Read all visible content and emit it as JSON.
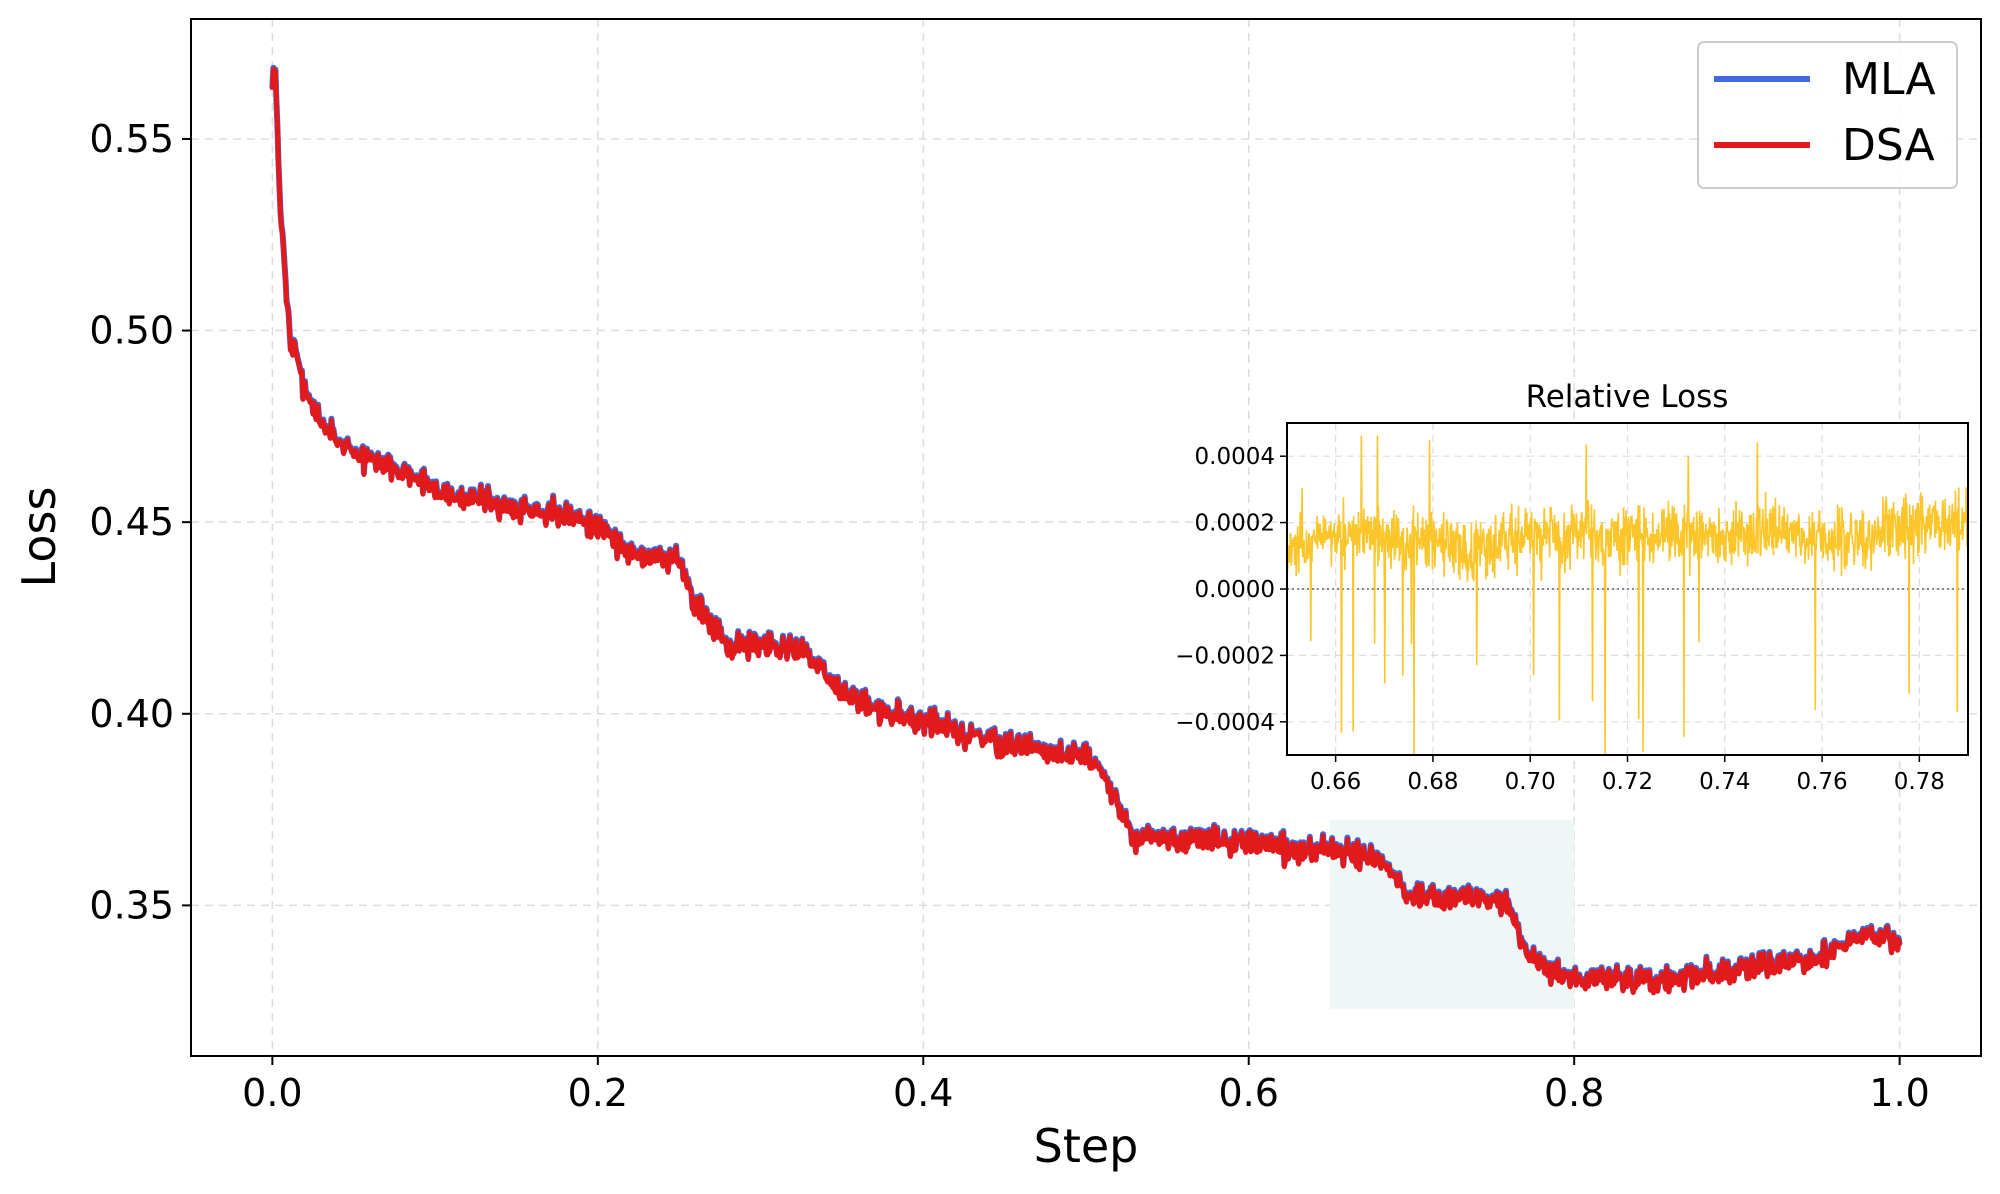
{
  "chart_data": [
    {
      "type": "line",
      "title": "",
      "xlabel": "Step",
      "ylabel": "Loss",
      "xlim": [
        -0.05,
        1.05
      ],
      "ylim": [
        0.3107,
        0.5813
      ],
      "xticks": [
        "0.0",
        "0.2",
        "0.4",
        "0.6",
        "0.8",
        "1.0"
      ],
      "xtick_values": [
        0,
        0.2,
        0.4,
        0.6,
        0.8,
        1.0
      ],
      "yticks": [
        "0.35",
        "0.40",
        "0.45",
        "0.50",
        "0.55"
      ],
      "ytick_values": [
        0.35,
        0.4,
        0.45,
        0.5,
        0.55
      ],
      "grid": true,
      "legend_placement": "top-right",
      "highlight_region": {
        "x": [
          0.65,
          0.8
        ],
        "y": [
          0.323,
          0.3723
        ],
        "color": "#eef7f6"
      },
      "x": [
        0.0,
        0.002,
        0.005,
        0.01,
        0.02,
        0.03,
        0.05,
        0.08,
        0.1,
        0.12,
        0.15,
        0.18,
        0.2,
        0.22,
        0.25,
        0.26,
        0.28,
        0.3,
        0.33,
        0.35,
        0.38,
        0.4,
        0.45,
        0.5,
        0.51,
        0.52,
        0.53,
        0.55,
        0.6,
        0.65,
        0.68,
        0.7,
        0.75,
        0.76,
        0.77,
        0.8,
        0.85,
        0.9,
        0.95,
        0.98,
        1.0
      ],
      "series": [
        {
          "name": "MLA",
          "color": "#4169e1",
          "values": [
            0.567,
            0.568,
            0.53,
            0.5,
            0.485,
            0.475,
            0.468,
            0.463,
            0.458,
            0.456,
            0.454,
            0.452,
            0.449,
            0.442,
            0.44,
            0.428,
            0.418,
            0.418,
            0.416,
            0.405,
            0.4,
            0.398,
            0.392,
            0.389,
            0.385,
            0.375,
            0.368,
            0.367,
            0.366,
            0.364,
            0.362,
            0.352,
            0.352,
            0.35,
            0.337,
            0.331,
            0.33,
            0.333,
            0.336,
            0.343,
            0.34
          ]
        },
        {
          "name": "DSA",
          "color": "#e31a1c",
          "values": [
            0.567,
            0.568,
            0.53,
            0.5,
            0.485,
            0.475,
            0.468,
            0.463,
            0.458,
            0.456,
            0.454,
            0.452,
            0.449,
            0.442,
            0.44,
            0.428,
            0.418,
            0.418,
            0.416,
            0.405,
            0.4,
            0.398,
            0.392,
            0.389,
            0.385,
            0.375,
            0.368,
            0.367,
            0.366,
            0.364,
            0.362,
            0.352,
            0.352,
            0.35,
            0.337,
            0.331,
            0.33,
            0.333,
            0.336,
            0.343,
            0.34
          ]
        }
      ]
    },
    {
      "type": "line",
      "title": "Relative Loss",
      "xlim": [
        0.65,
        0.79
      ],
      "ylim": [
        -0.0005,
        0.0005
      ],
      "xticks": [
        "0.66",
        "0.68",
        "0.70",
        "0.72",
        "0.74",
        "0.76",
        "0.78"
      ],
      "xtick_values": [
        0.66,
        0.68,
        0.7,
        0.72,
        0.74,
        0.76,
        0.78
      ],
      "yticks": [
        "−0.0004",
        "−0.0002",
        "0.0000",
        "0.0002",
        "0.0004"
      ],
      "ytick_values": [
        -0.0004,
        -0.0002,
        0,
        0.0002,
        0.0004
      ],
      "grid": true,
      "reference_line": 0,
      "color": "#fcc62a",
      "x": [
        0.65,
        0.66,
        0.67,
        0.68,
        0.69,
        0.7,
        0.71,
        0.72,
        0.73,
        0.74,
        0.75,
        0.76,
        0.77,
        0.78,
        0.79
      ],
      "values": [
        0.00012,
        0.00017,
        0.00015,
        0.00013,
        0.00012,
        0.00016,
        0.00017,
        0.00015,
        0.00016,
        0.00016,
        0.00018,
        0.00015,
        0.00016,
        0.0002,
        0.00022
      ]
    }
  ]
}
